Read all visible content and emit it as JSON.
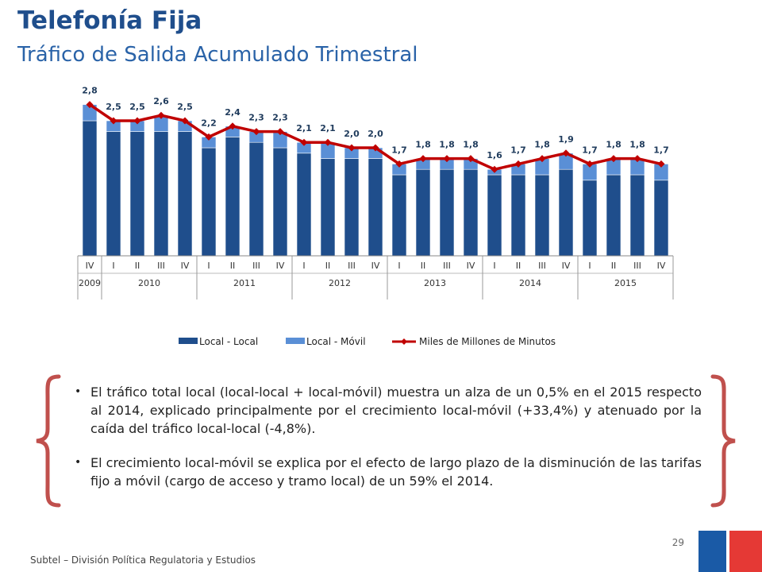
{
  "header": {
    "title": "Telefonía Fija",
    "subtitle": "Tráfico de Salida Acumulado Trimestral"
  },
  "chart_data": {
    "type": "bar",
    "stacked": true,
    "combo_line": true,
    "categories": [
      "IV",
      "I",
      "II",
      "III",
      "IV",
      "I",
      "II",
      "III",
      "IV",
      "I",
      "II",
      "III",
      "IV",
      "I",
      "II",
      "III",
      "IV",
      "I",
      "II",
      "III",
      "IV",
      "I",
      "II",
      "III",
      "IV"
    ],
    "years": [
      {
        "label": "2009",
        "count": 1
      },
      {
        "label": "2010",
        "count": 4
      },
      {
        "label": "2011",
        "count": 4
      },
      {
        "label": "2012",
        "count": 4
      },
      {
        "label": "2013",
        "count": 4
      },
      {
        "label": "2014",
        "count": 4
      },
      {
        "label": "2015",
        "count": 4
      }
    ],
    "series": [
      {
        "name": "Local - Local",
        "type": "bar",
        "color": "#1f4e8c",
        "values": [
          2.5,
          2.3,
          2.3,
          2.3,
          2.3,
          2.0,
          2.2,
          2.1,
          2.0,
          1.9,
          1.8,
          1.8,
          1.8,
          1.5,
          1.6,
          1.6,
          1.6,
          1.5,
          1.5,
          1.5,
          1.6,
          1.4,
          1.5,
          1.5,
          1.4
        ]
      },
      {
        "name": "Local - Móvil",
        "type": "bar",
        "color": "#5a8fd6",
        "values": [
          0.3,
          0.2,
          0.2,
          0.3,
          0.2,
          0.2,
          0.2,
          0.2,
          0.3,
          0.2,
          0.3,
          0.2,
          0.2,
          0.2,
          0.2,
          0.2,
          0.2,
          0.1,
          0.2,
          0.3,
          0.3,
          0.3,
          0.3,
          0.3,
          0.3
        ]
      },
      {
        "name": "Miles de Millones de Minutos",
        "type": "line",
        "color": "#c00000",
        "values": [
          2.8,
          2.5,
          2.5,
          2.6,
          2.5,
          2.2,
          2.4,
          2.3,
          2.3,
          2.1,
          2.1,
          2.0,
          2.0,
          1.7,
          1.8,
          1.8,
          1.8,
          1.6,
          1.7,
          1.8,
          1.9,
          1.7,
          1.8,
          1.8,
          1.7
        ],
        "labels": [
          "2,8",
          "2,5",
          "2,5",
          "2,6",
          "2,5",
          "2,2",
          "2,4",
          "2,3",
          "2,3",
          "2,1",
          "2,1",
          "2,0",
          "2,0",
          "1,7",
          "1,8",
          "1,8",
          "1,8",
          "1,6",
          "1,7",
          "1,8",
          "1,9",
          "1,7",
          "1,8",
          "1,8",
          "1,7"
        ]
      }
    ],
    "ylim": [
      0,
      3.0
    ],
    "grid": false,
    "legend_position": "bottom"
  },
  "bullets": [
    "El tráfico total local (local-local + local-móvil) muestra un alza de un 0,5% en el 2015 respecto al 2014, explicado principalmente por el crecimiento local-móvil (+33,4%) y atenuado por la caída del tráfico local-local (-4,8%).",
    "El crecimiento local-móvil se explica por el efecto de largo plazo de la disminución de las tarifas fijo a móvil (cargo de acceso y tramo local) de un 59% el 2014."
  ],
  "bullet_symbol": "•",
  "footer": {
    "text": "Subtel – División Política Regulatoria y Estudios",
    "page_number": "29"
  },
  "colors": {
    "title": "#1f4e8c",
    "brace": "#c0504d",
    "logo_blue": "#1a5aa6",
    "logo_red": "#e53935"
  }
}
